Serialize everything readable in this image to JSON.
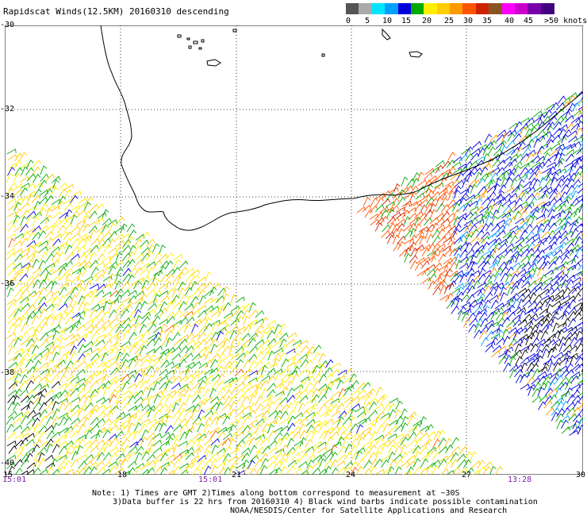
{
  "title": "Rapidscat Winds(12.5KM) 20160310 descending",
  "scale": {
    "colors": [
      "#555555",
      "#aaaaaa",
      "#00e5ff",
      "#00a0ff",
      "#0000dd",
      "#00aa00",
      "#ffee00",
      "#ffcc00",
      "#ff9900",
      "#ff5500",
      "#cc2200",
      "#885522",
      "#ff00ff",
      "#cc00cc",
      "#7700aa",
      "#400080"
    ],
    "labels": [
      "0",
      "5",
      "10",
      "15",
      "20",
      "25",
      "30",
      "35",
      "40",
      "45",
      ">50 knots"
    ]
  },
  "lat_labels": [
    "-30",
    "-32",
    "-34",
    "-36",
    "-38",
    "-40"
  ],
  "lon_labels": [
    "15",
    "18",
    "21",
    "24",
    "27",
    "30"
  ],
  "time_labels": [
    "15:01",
    "15:01",
    "13:28"
  ],
  "notes": [
    "Note: 1) Times are GMT 2)Times along bottom correspond to measurement at ~30S",
    "3)Data buffer is 22 hrs from 20160310 4) Black wind barbs indicate possible contamination",
    "NOAA/NESDIS/Center for Satellite Applications and Research"
  ],
  "wind_color_legend": {
    "swath_west_dominant": [
      "#ffee00",
      "#00aa00",
      "#ffcc00"
    ],
    "swath_east_dominant": [
      "#0000dd",
      "#00aa00",
      "#ff5500",
      "#000000"
    ]
  }
}
